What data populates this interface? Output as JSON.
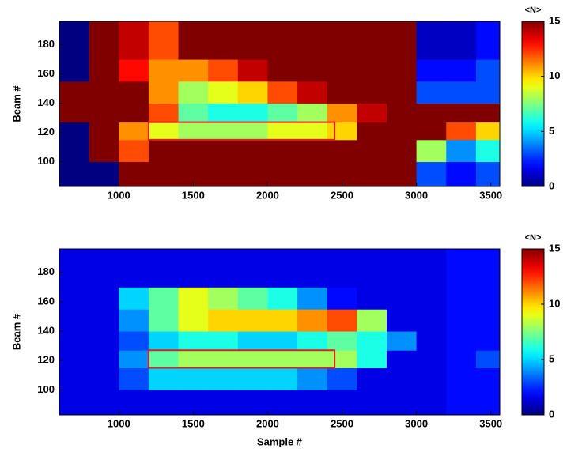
{
  "chart_data": [
    {
      "type": "heatmap",
      "y_label": "Beam #",
      "colormap": "jet",
      "colorbar_label": "<N>",
      "xlim": [
        600,
        3560
      ],
      "xticks": [
        1000,
        1500,
        2000,
        2500,
        3000,
        3500
      ],
      "ylim": [
        83,
        196
      ],
      "yticks": [
        100,
        120,
        140,
        160,
        180
      ],
      "clim": [
        0,
        15
      ],
      "cticks": [
        0,
        5,
        10,
        15
      ],
      "x_edges": [
        600,
        800,
        1000,
        1200,
        1400,
        1600,
        1800,
        2000,
        2200,
        2400,
        2600,
        2800,
        3000,
        3200,
        3400,
        3560
      ],
      "y_edges": [
        83,
        100,
        115,
        127,
        140,
        155,
        170,
        196
      ],
      "z": [
        [
          0,
          0,
          15,
          15,
          15,
          15,
          15,
          15,
          15,
          15,
          15,
          15,
          3,
          2,
          3
        ],
        [
          0,
          15,
          12,
          15,
          15,
          15,
          15,
          15,
          15,
          15,
          15,
          15,
          8,
          4,
          6
        ],
        [
          0,
          15,
          11,
          9,
          8,
          8,
          8,
          9,
          9,
          10,
          15,
          15,
          15,
          12,
          10
        ],
        [
          15,
          15,
          15,
          12,
          7,
          6,
          6,
          7,
          8,
          11,
          14,
          15,
          15,
          15,
          15
        ],
        [
          15,
          15,
          15,
          11,
          8,
          9,
          10,
          12,
          14,
          15,
          15,
          15,
          3,
          3,
          3
        ],
        [
          0,
          15,
          13,
          11,
          11,
          12,
          14,
          15,
          15,
          15,
          15,
          15,
          2,
          2,
          3
        ],
        [
          0,
          15,
          14,
          12,
          15,
          15,
          15,
          15,
          15,
          15,
          15,
          15,
          1,
          1,
          2
        ]
      ],
      "highlight": {
        "x": [
          1200,
          2450
        ],
        "y": [
          115,
          127
        ],
        "color": "#e02020"
      }
    },
    {
      "type": "heatmap",
      "x_label": "Sample #",
      "y_label": "Beam #",
      "colormap": "jet",
      "colorbar_label": "<N>",
      "xlim": [
        600,
        3560
      ],
      "xticks": [
        1000,
        1500,
        2000,
        2500,
        3000,
        3500
      ],
      "ylim": [
        83,
        196
      ],
      "yticks": [
        100,
        120,
        140,
        160,
        180
      ],
      "clim": [
        0,
        15
      ],
      "cticks": [
        0,
        5,
        10,
        15
      ],
      "x_edges": [
        600,
        800,
        1000,
        1200,
        1400,
        1600,
        1800,
        2000,
        2200,
        2400,
        2600,
        2800,
        3000,
        3200,
        3400,
        3560
      ],
      "y_edges": [
        83,
        100,
        115,
        127,
        140,
        155,
        170,
        196
      ],
      "z": [
        [
          1.5,
          1.5,
          1.5,
          1.5,
          1.5,
          1.5,
          1.5,
          1.5,
          1.5,
          1.5,
          1.5,
          1.5,
          1.5,
          2,
          2
        ],
        [
          1.5,
          1.5,
          3,
          5,
          5,
          5,
          5,
          5,
          4,
          3,
          1.5,
          1.5,
          1.5,
          2,
          2
        ],
        [
          1.5,
          1.5,
          4,
          7,
          8,
          8,
          8,
          8,
          8,
          8,
          6,
          1.5,
          1.5,
          2,
          3
        ],
        [
          1.5,
          1.5,
          3,
          5,
          6,
          6,
          5,
          5,
          6,
          7,
          6,
          4,
          1.5,
          2,
          2
        ],
        [
          1.5,
          1.5,
          4,
          7,
          9,
          10,
          10,
          10,
          11,
          12,
          8,
          1.5,
          1.5,
          2,
          2
        ],
        [
          1.5,
          1.5,
          5,
          7,
          9,
          8,
          7,
          6,
          4,
          2,
          1.5,
          1.5,
          1.5,
          2,
          2
        ],
        [
          1.5,
          1.5,
          1.5,
          1.5,
          1.5,
          1.5,
          1.5,
          1.5,
          1.5,
          1.5,
          1.5,
          1.5,
          1.5,
          2,
          2
        ]
      ],
      "highlight": {
        "x": [
          1200,
          2450
        ],
        "y": [
          115,
          127
        ],
        "color": "#e02020"
      }
    }
  ]
}
